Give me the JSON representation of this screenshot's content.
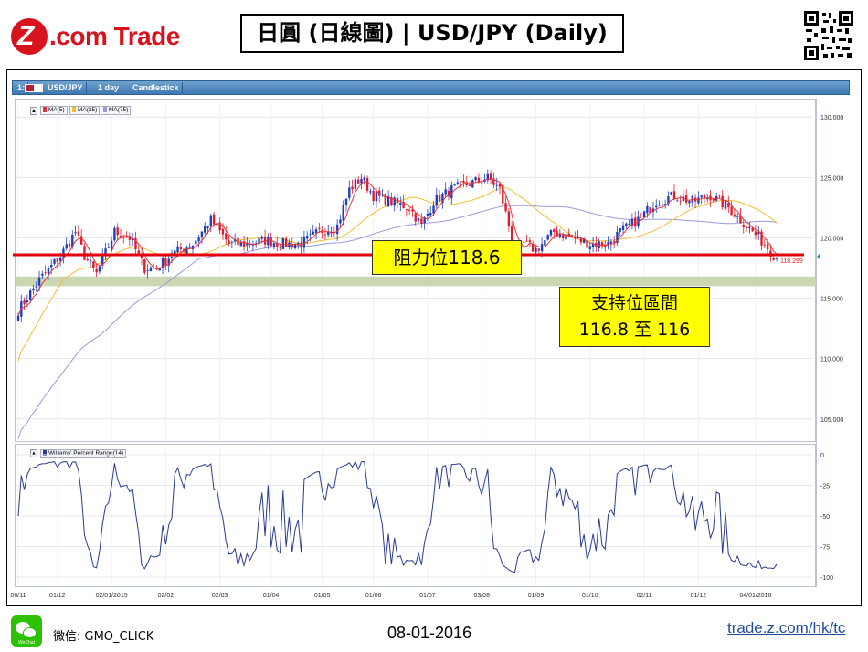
{
  "header": {
    "logo_mark": "Z",
    "logo_text": ".com Trade",
    "title": "日圓 (日線圖) | USD/JPY  (Daily)"
  },
  "toolbar": {
    "panel_number": "1:",
    "symbol": "USD/JPY",
    "interval": "1 day",
    "chart_type": "Candlestick"
  },
  "legend": {
    "ma5": "MA(5)",
    "ma25": "MA(25)",
    "ma75": "MA(75)",
    "williams": "Williams' Percent Range(14)",
    "ma5_color": "#e8333a",
    "ma25_color": "#f0c030",
    "ma75_color": "#9a9ae0"
  },
  "annotations": {
    "resistance": "阻力位118.6",
    "support_line1": "支持位區間",
    "support_line2": "116.8 至 116"
  },
  "last_price": "118.299",
  "footer": {
    "wechat_badge": "WeChat",
    "wechat_id": "微信: GMO_CLICK",
    "date": "08-01-2016",
    "site": "trade.z.com/hk/tc"
  },
  "chart_data": [
    {
      "type": "candlestick",
      "symbol": "USD/JPY",
      "interval": "Daily",
      "ylim": [
        104.0,
        131.0
      ],
      "y_ticks": [
        "130.000",
        "125.000",
        "120.000",
        "115.000",
        "110.000",
        "105.000"
      ],
      "x_ticks": [
        "06/11",
        "01/12",
        "02/01/2015",
        "02/02",
        "02/03",
        "01/04",
        "01/05",
        "01/06",
        "01/07",
        "03/08",
        "01/09",
        "01/10",
        "02/11",
        "01/12",
        "04/01/2016"
      ],
      "series": [
        {
          "name": "MA(5)"
        },
        {
          "name": "MA(25)"
        },
        {
          "name": "MA(75)"
        }
      ],
      "close_anchors": [
        [
          0,
          114.0
        ],
        [
          7,
          116.5
        ],
        [
          14,
          118.5
        ],
        [
          19,
          120.5
        ],
        [
          22,
          118.5
        ],
        [
          26,
          117.0
        ],
        [
          32,
          120.5
        ],
        [
          37,
          120.0
        ],
        [
          42,
          117.5
        ],
        [
          46,
          117.5
        ],
        [
          52,
          118.8
        ],
        [
          58,
          119.5
        ],
        [
          64,
          121.5
        ],
        [
          70,
          119.5
        ],
        [
          76,
          119.5
        ],
        [
          82,
          119.8
        ],
        [
          88,
          119.5
        ],
        [
          94,
          119.5
        ],
        [
          100,
          120.5
        ],
        [
          106,
          121.0
        ],
        [
          110,
          124.0
        ],
        [
          114,
          125.0
        ],
        [
          118,
          123.5
        ],
        [
          124,
          123.0
        ],
        [
          130,
          122.5
        ],
        [
          134,
          121.0
        ],
        [
          138,
          123.0
        ],
        [
          144,
          124.0
        ],
        [
          150,
          124.5
        ],
        [
          156,
          125.0
        ],
        [
          160,
          124.0
        ],
        [
          163,
          121.0
        ],
        [
          165,
          118.5
        ],
        [
          168,
          119.5
        ],
        [
          172,
          119.0
        ],
        [
          178,
          120.5
        ],
        [
          184,
          120.0
        ],
        [
          190,
          119.5
        ],
        [
          196,
          119.5
        ],
        [
          200,
          120.5
        ],
        [
          206,
          121.5
        ],
        [
          212,
          123.0
        ],
        [
          218,
          123.5
        ],
        [
          224,
          123.0
        ],
        [
          230,
          123.5
        ],
        [
          236,
          122.5
        ],
        [
          240,
          121.5
        ],
        [
          244,
          120.5
        ],
        [
          248,
          119.5
        ],
        [
          252,
          118.3
        ]
      ],
      "last_close": 118.299,
      "resistance": 118.6,
      "support_zone": [
        116.0,
        116.8
      ]
    },
    {
      "type": "line",
      "name": "Williams' Percent Range(14)",
      "ylim": [
        -100,
        0
      ],
      "y_ticks": [
        "0",
        "-25",
        "-50",
        "-75",
        "-100"
      ],
      "x": "same as main panel"
    }
  ]
}
